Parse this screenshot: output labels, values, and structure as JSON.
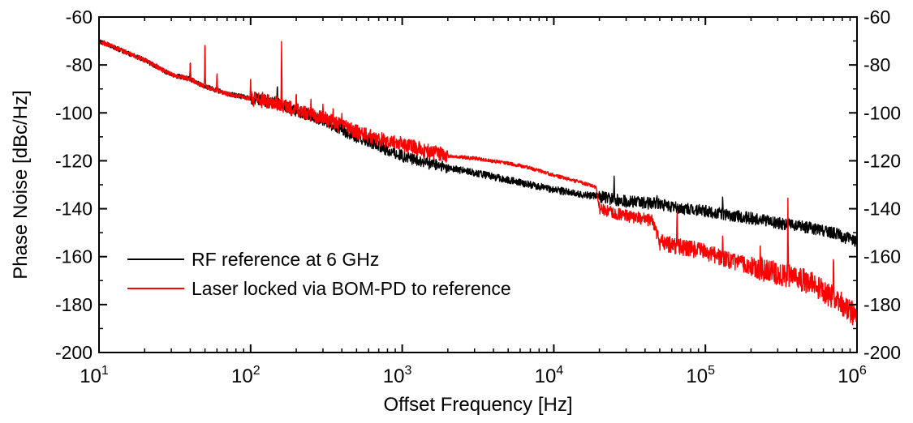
{
  "colors": {
    "background": "#ffffff",
    "axis": "#000000",
    "series_rf": "#000000",
    "series_laser": "#ff0000"
  },
  "chart_data": {
    "type": "line",
    "title": "",
    "xlabel": "Offset Frequency [Hz]",
    "ylabel": "Phase Noise [dBc/Hz]",
    "x_scale": "log",
    "xlim": [
      10,
      1000000
    ],
    "ylim": [
      -200,
      -60
    ],
    "grid": false,
    "legend_position": "bottom-left",
    "y_ticks": [
      -60,
      -80,
      -100,
      -120,
      -140,
      -160,
      -180,
      -200
    ],
    "y_tick_labels": [
      "-60",
      "-80",
      "-100",
      "-120",
      "-140",
      "-160",
      "-180",
      "-200"
    ],
    "x_ticks": [
      {
        "value": 10,
        "base": "10",
        "exp": "1"
      },
      {
        "value": 100,
        "base": "10",
        "exp": "2"
      },
      {
        "value": 1000,
        "base": "10",
        "exp": "3"
      },
      {
        "value": 10000,
        "base": "10",
        "exp": "4"
      },
      {
        "value": 100000,
        "base": "10",
        "exp": "5"
      },
      {
        "value": 1000000,
        "base": "10",
        "exp": "6"
      }
    ],
    "series": [
      {
        "name": "RF reference at 6 GHz",
        "color": "#000000",
        "points": [
          [
            10,
            -70
          ],
          [
            20,
            -78
          ],
          [
            30,
            -84
          ],
          [
            40,
            -86
          ],
          [
            50,
            -89
          ],
          [
            70,
            -92
          ],
          [
            100,
            -94
          ],
          [
            150,
            -96
          ],
          [
            200,
            -99
          ],
          [
            300,
            -103
          ],
          [
            500,
            -110
          ],
          [
            700,
            -114
          ],
          [
            1000,
            -118
          ],
          [
            1500,
            -121
          ],
          [
            2000,
            -123
          ],
          [
            3000,
            -125
          ],
          [
            5000,
            -128
          ],
          [
            7000,
            -130
          ],
          [
            10000,
            -132
          ],
          [
            15000,
            -134
          ],
          [
            20000,
            -135
          ],
          [
            30000,
            -137
          ],
          [
            50000,
            -138
          ],
          [
            70000,
            -140
          ],
          [
            100000,
            -141
          ],
          [
            150000,
            -143
          ],
          [
            200000,
            -144
          ],
          [
            300000,
            -146
          ],
          [
            500000,
            -148
          ],
          [
            700000,
            -150
          ],
          [
            1000000,
            -154
          ]
        ],
        "spikes": [
          [
            40,
            -79
          ],
          [
            150,
            -87
          ],
          [
            250,
            -99
          ],
          [
            25000,
            -126
          ],
          [
            48000,
            -134
          ],
          [
            130000,
            -134
          ]
        ]
      },
      {
        "name": "Laser locked via BOM-PD to reference",
        "color": "#ff0000",
        "points": [
          [
            10,
            -70
          ],
          [
            20,
            -78
          ],
          [
            30,
            -84
          ],
          [
            40,
            -86
          ],
          [
            50,
            -89
          ],
          [
            70,
            -92
          ],
          [
            100,
            -94
          ],
          [
            150,
            -96
          ],
          [
            200,
            -99
          ],
          [
            300,
            -102
          ],
          [
            500,
            -108
          ],
          [
            700,
            -111
          ],
          [
            1000,
            -113
          ],
          [
            1500,
            -116
          ],
          [
            2000,
            -118
          ],
          [
            3000,
            -119
          ],
          [
            5000,
            -121
          ],
          [
            7000,
            -123
          ],
          [
            10000,
            -126
          ],
          [
            15000,
            -129
          ],
          [
            19000,
            -131
          ],
          [
            20000,
            -140
          ],
          [
            30000,
            -143
          ],
          [
            45000,
            -145
          ],
          [
            50000,
            -154
          ],
          [
            70000,
            -156
          ],
          [
            100000,
            -158
          ],
          [
            150000,
            -162
          ],
          [
            200000,
            -164
          ],
          [
            300000,
            -167
          ],
          [
            500000,
            -171
          ],
          [
            700000,
            -177
          ],
          [
            1000000,
            -185
          ]
        ],
        "spikes": [
          [
            40,
            -79
          ],
          [
            50,
            -66
          ],
          [
            60,
            -82
          ],
          [
            100,
            -86
          ],
          [
            120,
            -91
          ],
          [
            160,
            -68
          ],
          [
            200,
            -90
          ],
          [
            250,
            -94
          ],
          [
            300,
            -96
          ],
          [
            350,
            -98
          ],
          [
            400,
            -100
          ],
          [
            450,
            -104
          ],
          [
            500,
            -104
          ],
          [
            600,
            -110
          ],
          [
            700,
            -108
          ],
          [
            800,
            -112
          ],
          [
            900,
            -112
          ],
          [
            1000,
            -116
          ],
          [
            65000,
            -139
          ],
          [
            130000,
            -150
          ],
          [
            230000,
            -155
          ],
          [
            350000,
            -134
          ],
          [
            700000,
            -156
          ]
        ]
      }
    ]
  }
}
